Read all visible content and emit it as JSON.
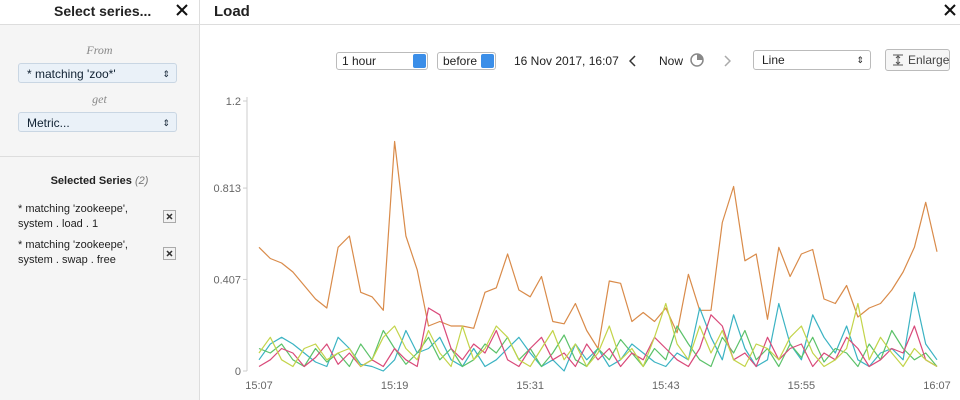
{
  "sidebar": {
    "title": "Select series...",
    "from": "From",
    "source": "* matching 'zoo*'",
    "get": "get",
    "metric": "Metric...",
    "selected_title": "Selected Series",
    "selected_count": "(2)",
    "items": [
      {
        "lines": [
          "* matching 'zookeepe',",
          "system . load . 1"
        ]
      },
      {
        "lines": [
          "* matching 'zookeepe',",
          "system . swap . free"
        ]
      }
    ]
  },
  "panel": {
    "title": "Load",
    "range": "1 hour",
    "direction": "before",
    "date": "16 Nov 2017, 16:07",
    "now": "Now",
    "view": "Line",
    "enlarge": "Enlarge"
  },
  "chart_data": {
    "type": "line",
    "categories": [
      "15:07",
      null,
      null,
      null,
      null,
      null,
      null,
      null,
      null,
      null,
      null,
      null,
      "15:19",
      null,
      null,
      null,
      null,
      null,
      null,
      null,
      null,
      null,
      null,
      null,
      "15:31",
      null,
      null,
      null,
      null,
      null,
      null,
      null,
      null,
      null,
      null,
      null,
      "15:43",
      null,
      null,
      null,
      null,
      null,
      null,
      null,
      null,
      null,
      null,
      null,
      "15:55",
      null,
      null,
      null,
      null,
      null,
      null,
      null,
      null,
      null,
      null,
      null,
      "16:07"
    ],
    "series": [
      {
        "color": "#d98b4a",
        "values": [
          0.55,
          0.5,
          0.48,
          0.44,
          0.38,
          0.32,
          0.28,
          0.55,
          0.6,
          0.35,
          0.33,
          0.27,
          1.02,
          0.6,
          0.45,
          0.2,
          0.22,
          0.2,
          0.2,
          0.19,
          0.35,
          0.37,
          0.52,
          0.36,
          0.33,
          0.42,
          0.22,
          0.21,
          0.3,
          0.18,
          0.1,
          0.4,
          0.39,
          0.22,
          0.26,
          0.22,
          0.28,
          0.17,
          0.43,
          0.27,
          0.27,
          0.66,
          0.82,
          0.49,
          0.52,
          0.23,
          0.55,
          0.42,
          0.52,
          0.54,
          0.32,
          0.3,
          0.38,
          0.24,
          0.28,
          0.3,
          0.36,
          0.44,
          0.55,
          0.75,
          0.53
        ]
      },
      {
        "color": "#3bb3c3",
        "values": [
          0.05,
          0.12,
          0.15,
          0.12,
          0.08,
          0.04,
          0.02,
          0.15,
          0.1,
          0.03,
          0.02,
          0.0,
          0.05,
          0.18,
          0.08,
          0.1,
          0.15,
          0.05,
          0.02,
          0.1,
          0.02,
          0.05,
          0.1,
          0.15,
          0.08,
          0.02,
          0.05,
          0.0,
          0.12,
          0.05,
          0.1,
          0.02,
          0.05,
          0.12,
          0.08,
          0.04,
          0.02,
          0.08,
          0.05,
          0.28,
          0.15,
          0.05,
          0.25,
          0.1,
          0.02,
          0.05,
          0.3,
          0.12,
          0.05,
          0.25,
          0.15,
          0.08,
          0.2,
          0.05,
          0.02,
          0.08,
          0.1,
          0.05,
          0.35,
          0.12,
          0.05
        ]
      },
      {
        "color": "#5cc26a",
        "values": [
          0.1,
          0.08,
          0.12,
          0.05,
          0.02,
          0.1,
          0.04,
          0.08,
          0.02,
          0.12,
          0.05,
          0.18,
          0.1,
          0.03,
          0.08,
          0.15,
          0.05,
          0.1,
          0.02,
          0.05,
          0.12,
          0.08,
          0.15,
          0.05,
          0.1,
          0.02,
          0.08,
          0.16,
          0.05,
          0.02,
          0.1,
          0.05,
          0.14,
          0.08,
          0.02,
          0.1,
          0.05,
          0.2,
          0.12,
          0.05,
          0.02,
          0.15,
          0.08,
          0.18,
          0.05,
          0.1,
          0.02,
          0.12,
          0.06,
          0.15,
          0.04,
          0.1,
          0.08,
          0.02,
          0.12,
          0.05,
          0.18,
          0.1,
          0.05,
          0.08,
          0.02
        ]
      },
      {
        "color": "#d94a7a",
        "values": [
          0.02,
          0.05,
          0.1,
          0.08,
          0.02,
          0.06,
          0.12,
          0.03,
          0.08,
          0.02,
          0.05,
          0.02,
          0.1,
          0.05,
          0.02,
          0.28,
          0.25,
          0.1,
          0.05,
          0.12,
          0.08,
          0.18,
          0.05,
          0.02,
          0.1,
          0.15,
          0.05,
          0.08,
          0.02,
          0.12,
          0.05,
          0.1,
          0.02,
          0.08,
          0.05,
          0.15,
          0.1,
          0.05,
          0.02,
          0.1,
          0.25,
          0.2,
          0.05,
          0.08,
          0.02,
          0.15,
          0.05,
          0.1,
          0.12,
          0.02,
          0.08,
          0.05,
          0.15,
          0.1,
          0.02,
          0.05,
          0.1,
          0.08,
          0.2,
          0.05,
          0.02
        ]
      },
      {
        "color": "#c3d44a",
        "values": [
          0.08,
          0.15,
          0.05,
          0.02,
          0.1,
          0.12,
          0.05,
          0.08,
          0.1,
          0.02,
          0.05,
          0.15,
          0.2,
          0.1,
          0.05,
          0.18,
          0.08,
          0.02,
          0.2,
          0.05,
          0.1,
          0.2,
          0.15,
          0.05,
          0.02,
          0.1,
          0.18,
          0.05,
          0.12,
          0.02,
          0.08,
          0.2,
          0.05,
          0.1,
          0.02,
          0.15,
          0.3,
          0.12,
          0.05,
          0.2,
          0.08,
          0.18,
          0.05,
          0.02,
          0.12,
          0.1,
          0.05,
          0.15,
          0.2,
          0.08,
          0.02,
          0.05,
          0.1,
          0.3,
          0.05,
          0.15,
          0.08,
          0.02,
          0.1,
          0.05,
          0.02
        ]
      }
    ],
    "ylim": [
      0,
      1.2
    ],
    "yticks": [
      0,
      0.407,
      0.813,
      1.2
    ],
    "grid": false
  }
}
